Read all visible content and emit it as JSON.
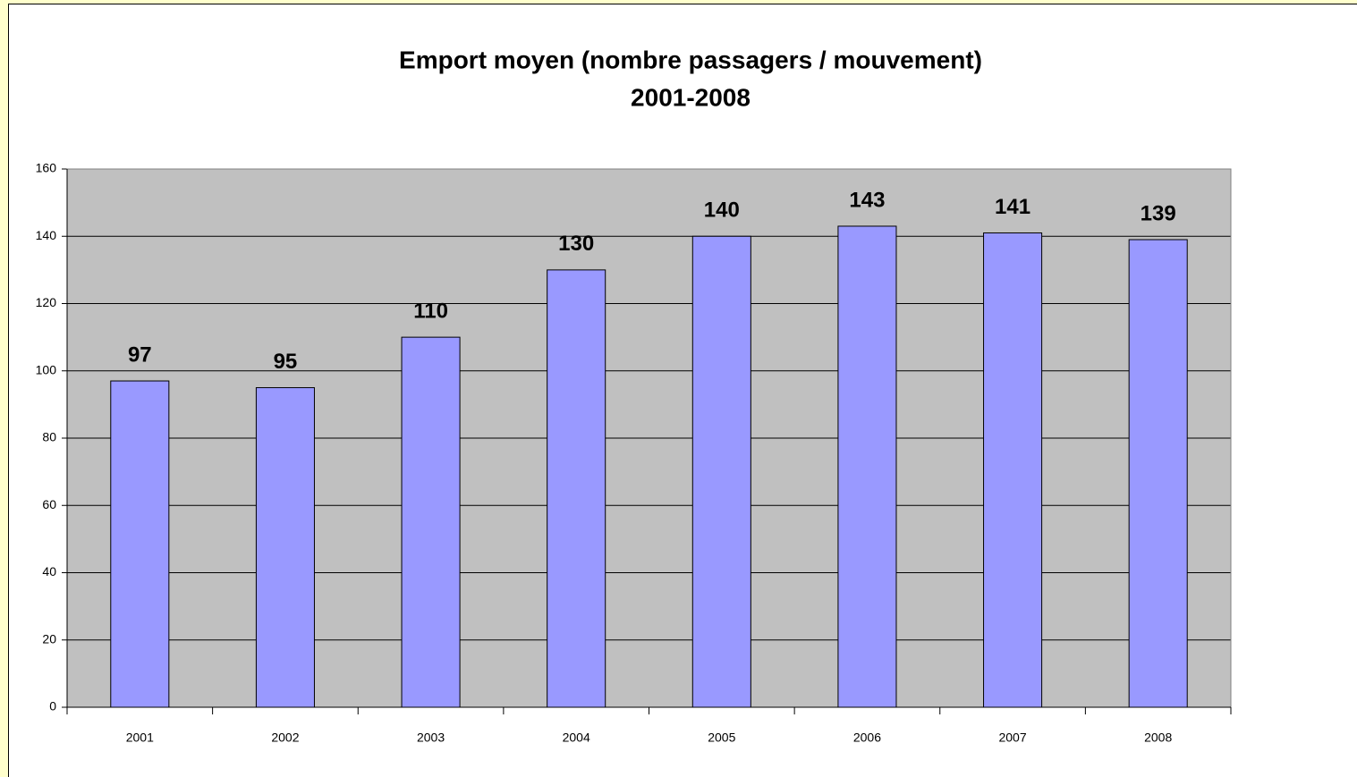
{
  "chart_data": {
    "type": "bar",
    "title": "Emport moyen (nombre passagers / mouvement)",
    "subtitle": "2001-2008",
    "categories": [
      "2001",
      "2002",
      "2003",
      "2004",
      "2005",
      "2006",
      "2007",
      "2008"
    ],
    "values": [
      97,
      95,
      110,
      130,
      140,
      143,
      141,
      139
    ],
    "color": "#9999ff",
    "ylim": [
      0,
      160
    ],
    "yticks": [
      0,
      20,
      40,
      60,
      80,
      100,
      120,
      140,
      160
    ],
    "grid": true
  }
}
